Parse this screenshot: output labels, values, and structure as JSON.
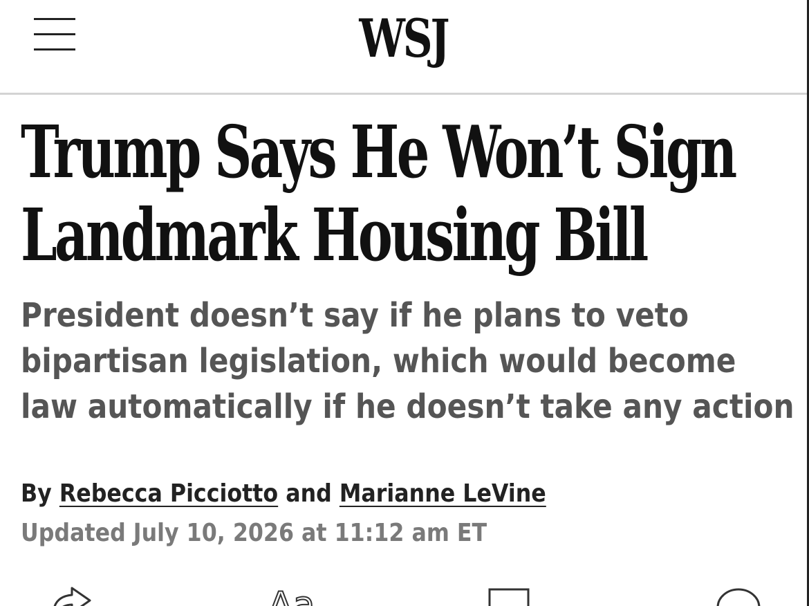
{
  "header": {
    "logo": "WSJ",
    "menu_icon": "hamburger-menu-icon"
  },
  "article": {
    "headline_line1": "Trump Says He Won’t Sign",
    "headline_line2": "Landmark Housing Bill",
    "dek_line1": "President doesn’t say if he plans to veto",
    "dek_line2": "bipartisan legislation, which would become",
    "dek_line3": "law automatically if he doesn’t take any action",
    "byline_prefix": "By",
    "author1": "Rebecca Picciotto",
    "byline_joiner": "and",
    "author2": "Marianne LeVine",
    "updated": "Updated July 10, 2026 at 11:12 am ET"
  },
  "toolbar": {
    "share_icon": "share-icon",
    "text_size_icon": "text-size-icon",
    "text_size_glyph": "Aa",
    "bookmark_icon": "bookmark-icon",
    "comment_icon": "comment-icon"
  },
  "colors": {
    "text": "#111111",
    "dek": "#555555",
    "timestamp": "#7a7a7a",
    "divider": "#d3d3d3"
  }
}
